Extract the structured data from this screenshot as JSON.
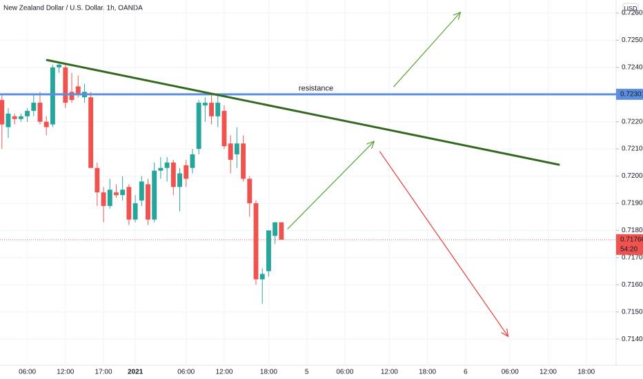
{
  "chart_data": {
    "type": "candlestick",
    "title": "New Zealand Dollar / U.S. Dollar, 1h, OANDA",
    "currency": "USD",
    "countdown": "54:20",
    "up_color": "#26a69a",
    "down_color": "#ef5350",
    "grid": true,
    "x": [
      0,
      1,
      2,
      3,
      4,
      5,
      6,
      7,
      8,
      9,
      10,
      11,
      12,
      13,
      14,
      15,
      16,
      17,
      18,
      19,
      20,
      21,
      22,
      23,
      24,
      25,
      26,
      27,
      28,
      29,
      30,
      31,
      32,
      33,
      34,
      35,
      36,
      37,
      38,
      39,
      40,
      41,
      42,
      43,
      44
    ],
    "open": [
      0.7228,
      0.7218,
      0.7222,
      0.7221,
      0.7222,
      0.7224,
      0.7227,
      0.722,
      0.7219,
      0.724,
      0.724,
      0.7231,
      0.7233,
      0.7229,
      0.7229,
      0.7203,
      0.7194,
      0.7189,
      0.7194,
      0.7193,
      0.7196,
      0.7184,
      0.7191,
      0.7197,
      0.7184,
      0.7202,
      0.7203,
      0.7205,
      0.7196,
      0.7204,
      0.7203,
      0.721,
      0.7226,
      0.7227,
      0.7222,
      0.7224,
      0.7212,
      0.7208,
      0.7212,
      0.7199,
      0.719,
      0.7162,
      0.7165,
      0.7178,
      0.7183
    ],
    "high": [
      0.723,
      0.7225,
      0.7223,
      0.7223,
      0.7225,
      0.723,
      0.7231,
      0.7222,
      0.7241,
      0.7242,
      0.7241,
      0.7238,
      0.7237,
      0.7234,
      0.7231,
      0.7205,
      0.7196,
      0.7199,
      0.7197,
      0.72,
      0.7197,
      0.7193,
      0.72,
      0.7199,
      0.7205,
      0.7207,
      0.7207,
      0.7206,
      0.7203,
      0.7206,
      0.721,
      0.7228,
      0.7229,
      0.723,
      0.723,
      0.7226,
      0.7215,
      0.7218,
      0.7215,
      0.72,
      0.7191,
      0.7166,
      0.718,
      0.7183,
      0.7183
    ],
    "low": [
      0.721,
      0.7214,
      0.7219,
      0.722,
      0.722,
      0.7222,
      0.7219,
      0.7215,
      0.7218,
      0.7238,
      0.7225,
      0.7227,
      0.7229,
      0.7227,
      0.7203,
      0.7189,
      0.7183,
      0.7188,
      0.7192,
      0.7191,
      0.7182,
      0.7183,
      0.7189,
      0.7182,
      0.7183,
      0.7199,
      0.7198,
      0.7193,
      0.7187,
      0.7196,
      0.7201,
      0.7208,
      0.722,
      0.7219,
      0.7218,
      0.721,
      0.7201,
      0.7203,
      0.7198,
      0.7185,
      0.716,
      0.7153,
      0.7163,
      0.7175,
      0.71766
    ],
    "close": [
      0.7219,
      0.7223,
      0.7221,
      0.7222,
      0.7224,
      0.7227,
      0.722,
      0.7218,
      0.724,
      0.7241,
      0.7227,
      0.7228,
      0.723,
      0.7231,
      0.7203,
      0.7194,
      0.7189,
      0.7195,
      0.7193,
      0.7195,
      0.7184,
      0.719,
      0.7198,
      0.7184,
      0.7202,
      0.7203,
      0.7205,
      0.7196,
      0.7201,
      0.7199,
      0.7208,
      0.7227,
      0.7227,
      0.7222,
      0.7227,
      0.7211,
      0.7206,
      0.7212,
      0.7199,
      0.719,
      0.7162,
      0.7164,
      0.718,
      0.7183,
      0.71766
    ],
    "xlim": [
      -0.3,
      96.7
    ],
    "xticks": [
      {
        "value": 4,
        "label": "06:00"
      },
      {
        "value": 10,
        "label": "12:00"
      },
      {
        "value": 16,
        "label": "17:00"
      },
      {
        "value": 21,
        "label": "2021"
      },
      {
        "value": 29,
        "label": "06:00"
      },
      {
        "value": 35,
        "label": "12:00"
      },
      {
        "value": 42,
        "label": "18:00"
      },
      {
        "value": 48,
        "label": "5"
      },
      {
        "value": 54,
        "label": "06:00"
      },
      {
        "value": 61,
        "label": "12:00"
      },
      {
        "value": 67,
        "label": "18:00"
      },
      {
        "value": 73,
        "label": "6"
      },
      {
        "value": 80,
        "label": "06:00"
      },
      {
        "value": 86,
        "label": "12:00"
      },
      {
        "value": 92,
        "label": "18:00"
      }
    ],
    "ylim": [
      0.71304,
      0.72648
    ],
    "yticks": [
      {
        "value": 0.714,
        "label": "0.71400"
      },
      {
        "value": 0.715,
        "label": "0.71500"
      },
      {
        "value": 0.716,
        "label": "0.71600"
      },
      {
        "value": 0.717,
        "label": "0.71700"
      },
      {
        "value": 0.718,
        "label": "0.71800"
      },
      {
        "value": 0.719,
        "label": "0.71900"
      },
      {
        "value": 0.72,
        "label": "0.72000"
      },
      {
        "value": 0.721,
        "label": "0.72100"
      },
      {
        "value": 0.722,
        "label": "0.72200"
      },
      {
        "value": 0.723,
        "label": "0.72300"
      },
      {
        "value": 0.724,
        "label": "0.72400"
      },
      {
        "value": 0.725,
        "label": "0.72500"
      },
      {
        "value": 0.726,
        "label": "0.72600"
      }
    ],
    "resistance": {
      "label": "resistance",
      "value": 0.72301,
      "color": "#5b8fde"
    },
    "trend_line": {
      "color": "#33691e",
      "points": [
        [
          7.1,
          0.72427
        ],
        [
          87.7,
          0.72042
        ]
      ]
    },
    "arrows": [
      {
        "color": "#5a9e2f",
        "points": [
          [
            45.0,
            0.71806
          ],
          [
            58.6,
            0.72128
          ]
        ]
      },
      {
        "color": "#5a9e2f",
        "points": [
          [
            61.7,
            0.72329
          ],
          [
            72.2,
            0.72603
          ]
        ]
      },
      {
        "color": "#e53935",
        "points": [
          [
            59.5,
            0.7209
          ],
          [
            79.7,
            0.7141
          ]
        ]
      }
    ]
  }
}
